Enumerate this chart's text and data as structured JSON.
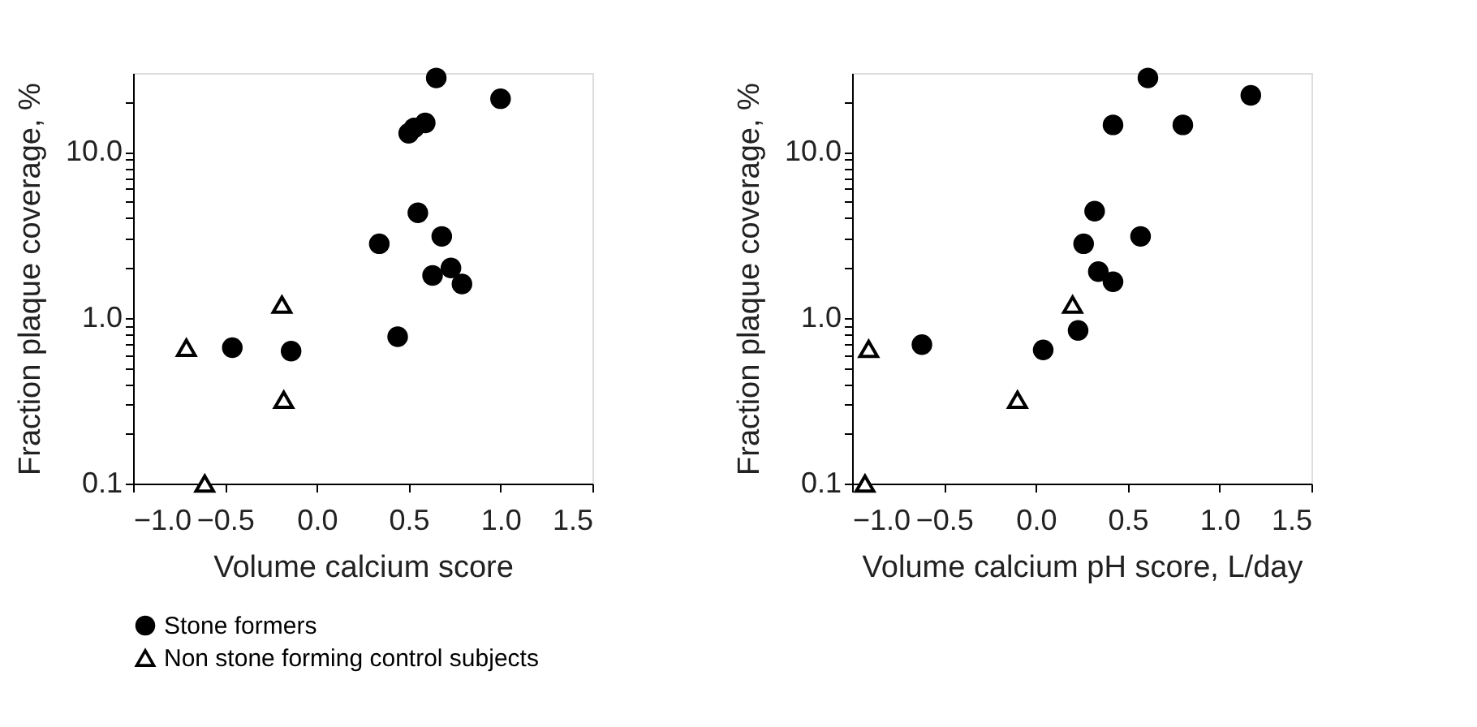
{
  "chart_data": [
    {
      "type": "scatter",
      "xlabel": "Volume calcium score",
      "ylabel": "Fraction plaque coverage, %",
      "log": "y",
      "grid": false,
      "legend": "bottom",
      "xlim": [
        -1.0,
        1.5
      ],
      "xticks": [
        {
          "value": -1.0,
          "label": "−1.0"
        },
        {
          "value": -0.5,
          "label": "−0.5"
        },
        {
          "value": 0,
          "label": "0.0"
        },
        {
          "value": 0.5,
          "label": "0.5"
        },
        {
          "value": 1.0,
          "label": "1.0"
        },
        {
          "value": 1.5,
          "label": "1.5"
        }
      ],
      "ylim": [
        0.1,
        30
      ],
      "yticks": [
        {
          "value": 0.1,
          "label": "0.1"
        },
        {
          "value": 0.2,
          "label": null
        },
        {
          "value": 0.3,
          "label": null
        },
        {
          "value": 0.4,
          "label": null
        },
        {
          "value": 0.5,
          "label": null
        },
        {
          "value": 0.6,
          "label": null
        },
        {
          "value": 0.7,
          "label": null
        },
        {
          "value": 0.8,
          "label": null
        },
        {
          "value": 0.9,
          "label": null
        },
        {
          "value": 1,
          "label": "1.0"
        },
        {
          "value": 2,
          "label": null
        },
        {
          "value": 3,
          "label": null
        },
        {
          "value": 4,
          "label": null
        },
        {
          "value": 5,
          "label": null
        },
        {
          "value": 6,
          "label": null
        },
        {
          "value": 7,
          "label": null
        },
        {
          "value": 8,
          "label": null
        },
        {
          "value": 9,
          "label": null
        },
        {
          "value": 10,
          "label": "10.0"
        },
        {
          "value": 20,
          "label": null
        }
      ],
      "series": [
        {
          "name": "Stone formers",
          "color": "#000000",
          "marker": "circle",
          "x": [
            0.65,
            1.0,
            0.5,
            0.53,
            0.59,
            0.55,
            0.34,
            0.68,
            0.63,
            0.73,
            0.79,
            0.44,
            -0.46,
            -0.14
          ],
          "values": [
            28,
            21,
            13,
            14,
            15,
            4.3,
            2.8,
            3.1,
            1.8,
            2.0,
            1.6,
            0.77,
            0.66,
            0.63
          ]
        },
        {
          "name": "Non stone forming control subjects",
          "color": "#000000",
          "marker": "triangle",
          "x": [
            -0.71,
            -0.19,
            -0.18,
            -0.61
          ],
          "values": [
            0.66,
            1.2,
            0.32,
            0.1
          ]
        }
      ]
    },
    {
      "type": "scatter",
      "xlabel": "Volume calcium pH score, L/day",
      "ylabel": "Fraction plaque coverage, %",
      "log": "y",
      "grid": false,
      "legend": "bottom",
      "xlim": [
        -1.0,
        1.5
      ],
      "xticks": [
        {
          "value": -1.0,
          "label": "−1.0"
        },
        {
          "value": -0.5,
          "label": "−0.5"
        },
        {
          "value": 0,
          "label": "0.0"
        },
        {
          "value": 0.5,
          "label": "0.5"
        },
        {
          "value": 1.0,
          "label": "1.0"
        },
        {
          "value": 1.5,
          "label": "1.5"
        }
      ],
      "ylim": [
        0.1,
        30
      ],
      "yticks": [
        {
          "value": 0.1,
          "label": "0.1"
        },
        {
          "value": 0.2,
          "label": null
        },
        {
          "value": 0.3,
          "label": null
        },
        {
          "value": 0.4,
          "label": null
        },
        {
          "value": 0.5,
          "label": null
        },
        {
          "value": 0.6,
          "label": null
        },
        {
          "value": 0.7,
          "label": null
        },
        {
          "value": 0.8,
          "label": null
        },
        {
          "value": 0.9,
          "label": null
        },
        {
          "value": 1,
          "label": "1.0"
        },
        {
          "value": 2,
          "label": null
        },
        {
          "value": 3,
          "label": null
        },
        {
          "value": 4,
          "label": null
        },
        {
          "value": 5,
          "label": null
        },
        {
          "value": 6,
          "label": null
        },
        {
          "value": 7,
          "label": null
        },
        {
          "value": 8,
          "label": null
        },
        {
          "value": 9,
          "label": null
        },
        {
          "value": 10,
          "label": "10.0"
        },
        {
          "value": 20,
          "label": null
        }
      ],
      "series": [
        {
          "name": "Stone formers",
          "color": "#000000",
          "marker": "circle",
          "x": [
            0.61,
            1.17,
            0.42,
            0.8,
            0.32,
            0.26,
            0.57,
            0.34,
            0.42,
            0.23,
            0.04,
            -0.62
          ],
          "values": [
            28,
            22,
            14.6,
            14.6,
            4.4,
            2.8,
            3.1,
            1.9,
            1.65,
            0.84,
            0.64,
            0.69
          ]
        },
        {
          "name": "Non stone forming control subjects",
          "color": "#000000",
          "marker": "triangle",
          "x": [
            -0.91,
            0.2,
            -0.1,
            -0.93
          ],
          "values": [
            0.65,
            1.2,
            0.32,
            0.1
          ]
        }
      ]
    }
  ]
}
